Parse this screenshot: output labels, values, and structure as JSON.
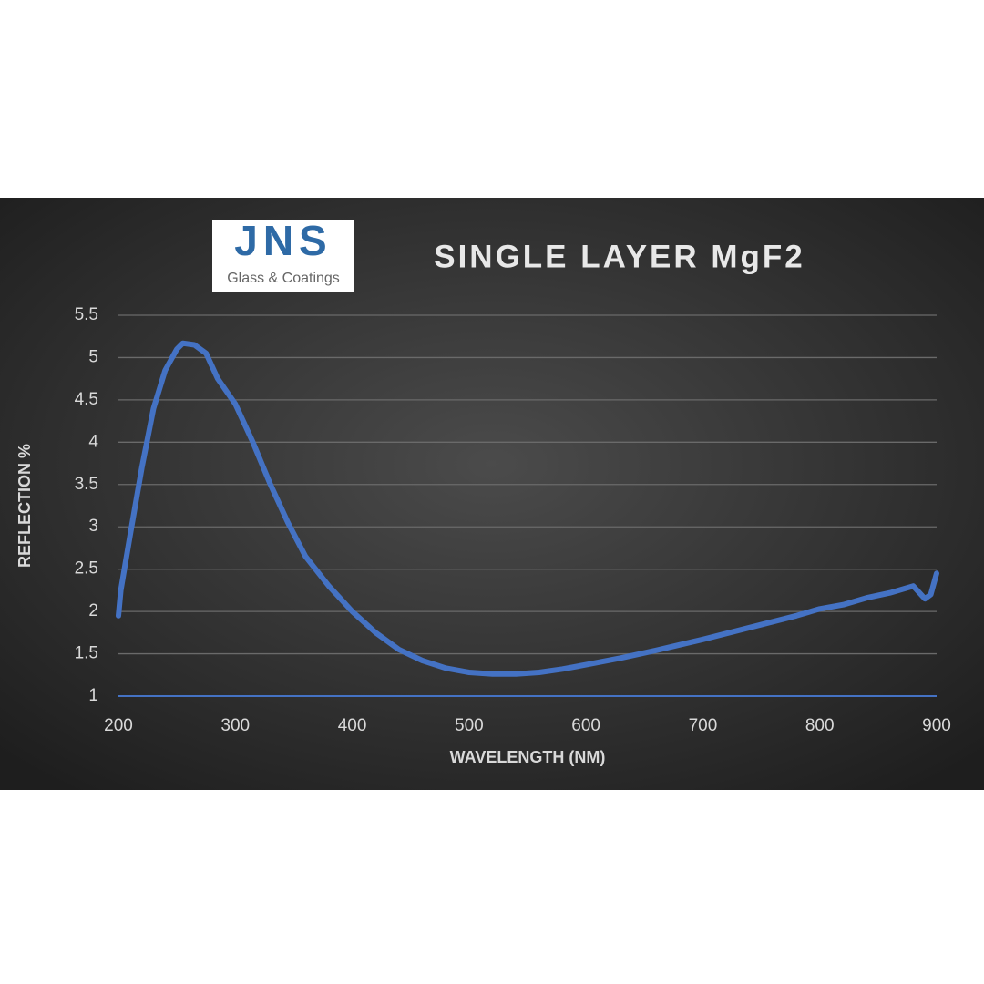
{
  "logo": {
    "name": "JNS",
    "tagline": "Glass & Coatings"
  },
  "chart_data": {
    "type": "line",
    "title": "SINGLE LAYER MgF2",
    "x_label": "WAVELENGTH (NM)",
    "y_label": "REFLECTION %",
    "x": [
      200,
      202,
      210,
      220,
      230,
      240,
      250,
      255,
      265,
      275,
      285,
      300,
      315,
      330,
      345,
      360,
      380,
      400,
      420,
      440,
      460,
      480,
      500,
      520,
      540,
      560,
      580,
      600,
      630,
      660,
      700,
      740,
      780,
      800,
      820,
      840,
      860,
      875,
      880,
      890,
      895,
      900
    ],
    "values": [
      1.95,
      2.25,
      2.9,
      3.7,
      4.4,
      4.85,
      5.1,
      5.17,
      5.15,
      5.05,
      4.75,
      4.45,
      4.0,
      3.5,
      3.05,
      2.65,
      2.3,
      2.0,
      1.75,
      1.55,
      1.42,
      1.33,
      1.28,
      1.26,
      1.26,
      1.28,
      1.32,
      1.37,
      1.45,
      1.54,
      1.67,
      1.81,
      1.95,
      2.03,
      2.08,
      2.16,
      2.22,
      2.28,
      2.3,
      2.15,
      2.2,
      2.45
    ],
    "color": "#4472c4",
    "axis_color": "#4472c4",
    "xlim": [
      200,
      900
    ],
    "xticks": [
      200,
      300,
      400,
      500,
      600,
      700,
      800,
      900
    ],
    "ylim": [
      1,
      5.5
    ],
    "yticks": [
      1,
      1.5,
      2,
      2.5,
      3,
      3.5,
      4,
      4.5,
      5,
      5.5
    ],
    "grid": true
  }
}
